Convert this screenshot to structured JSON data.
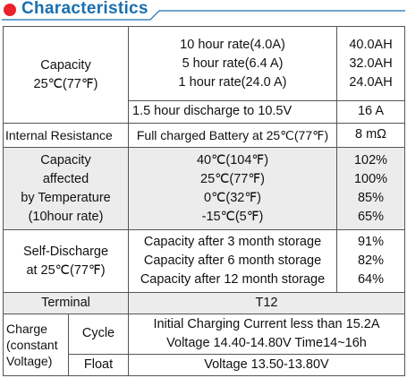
{
  "title": "Characteristics",
  "capacity": {
    "label": "Capacity",
    "temp": "25℃(77℉)",
    "rates": [
      "10 hour rate(4.0A)",
      "5 hour rate(6.4 A)",
      "1 hour rate(24.0 A)"
    ],
    "values": [
      "40.0AH",
      "32.0AH",
      "24.0AH"
    ],
    "discharge_label": "1.5 hour discharge to 10.5V",
    "discharge_value": "16 A"
  },
  "internal_resistance": {
    "label": "Internal Resistance",
    "condition": "Full charged Battery at 25℃(77℉)",
    "value": "8 mΩ"
  },
  "temperature": {
    "label_lines": [
      "Capacity",
      "affected",
      "by Temperature",
      "(10hour rate)"
    ],
    "temps": [
      "40℃(104℉)",
      "25℃(77℉)",
      "0℃(32℉)",
      "-15℃(5℉)"
    ],
    "values": [
      "102%",
      "100%",
      "85%",
      "65%"
    ]
  },
  "self_discharge": {
    "label_lines": [
      "Self-Discharge",
      "at 25℃(77℉)"
    ],
    "storage": [
      "Capacity after 3 month storage",
      "Capacity after 6 month storage",
      "Capacity after 12 month storage"
    ],
    "values": [
      "91%",
      "82%",
      "64%"
    ]
  },
  "terminal": {
    "label": "Terminal",
    "value": "T12"
  },
  "charge": {
    "label_lines": [
      "Charge",
      "(constant",
      "Voltage)"
    ],
    "cycle_label": "Cycle",
    "cycle_lines": [
      "Initial Charging Current less than 15.2A",
      "Voltage 14.40-14.80V Time14~16h"
    ],
    "float_label": "Float",
    "float_value": "Voltage 13.50-13.80V"
  },
  "colors": {
    "accent_red": "#e8232a",
    "accent_blue": "#1a6fb0",
    "shade": "#ececec"
  }
}
